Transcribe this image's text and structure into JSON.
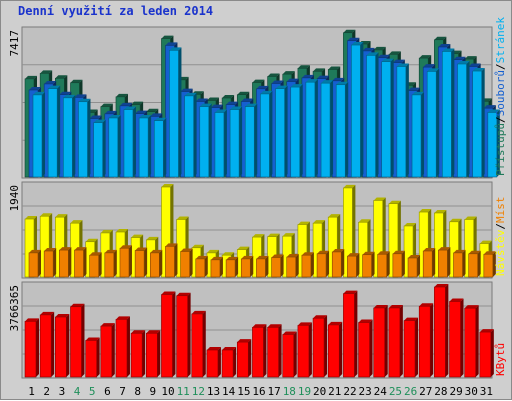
{
  "chart_data": {
    "type": "bar",
    "title": "Denní využití za leden 2014",
    "categories": [
      "1",
      "2",
      "3",
      "4",
      "5",
      "6",
      "7",
      "8",
      "9",
      "10",
      "11",
      "12",
      "13",
      "14",
      "15",
      "16",
      "17",
      "18",
      "19",
      "20",
      "21",
      "22",
      "23",
      "24",
      "25",
      "26",
      "27",
      "28",
      "29",
      "30",
      "31"
    ],
    "weekend_days": [
      "4",
      "5",
      "11",
      "12",
      "18",
      "19",
      "25",
      "26"
    ],
    "panels": [
      {
        "id": "top",
        "ymax_label": "7417",
        "ylim": [
          0,
          7417
        ],
        "series": [
          {
            "name": "Stránek",
            "color": "#1f7a5a",
            "values": [
              5020,
              5300,
              5050,
              4820,
              3300,
              3600,
              4100,
              3700,
              3340,
              7080,
              4970,
              4230,
              3910,
              4040,
              4210,
              4830,
              5140,
              5260,
              5560,
              5400,
              5500,
              7380,
              6800,
              6500,
              6270,
              4690,
              6080,
              7020,
              6310,
              6030,
              3870
            ]
          },
          {
            "name": "Souborů",
            "color": "#1560d0",
            "values": [
              4450,
              4760,
              4210,
              4070,
              2990,
              3230,
              3640,
              3240,
              3100,
              6730,
              4370,
              3860,
              3550,
              3700,
              3860,
              4510,
              4780,
              4880,
              5070,
              5030,
              4920,
              6970,
              6450,
              6100,
              5850,
              4420,
              5620,
              6650,
              6000,
              5650,
              3520
            ]
          },
          {
            "name": "Přístupů",
            "color": "#00b0f0",
            "values": [
              4200,
              4520,
              4050,
              3850,
              2780,
              3020,
              3450,
              3020,
              2880,
              6480,
              4150,
              3600,
              3300,
              3450,
              3600,
              4250,
              4520,
              4600,
              4850,
              4800,
              4720,
              6750,
              6220,
              5900,
              5650,
              4200,
              5400,
              6420,
              5780,
              5420,
              3300
            ]
          }
        ],
        "right_labels": [
          {
            "text": "Přístupů",
            "color": "#1f7a5a"
          },
          {
            "text": "/",
            "color": "#000000"
          },
          {
            "text": "Souborů",
            "color": "#1560d0"
          },
          {
            "text": "/",
            "color": "#000000"
          },
          {
            "text": "Stránek",
            "color": "#00b0f0"
          }
        ]
      },
      {
        "id": "middle",
        "ymax_label": "1940",
        "ylim": [
          0,
          1940
        ],
        "series": [
          {
            "name": "Návštěv",
            "color": "#ffff00",
            "values": [
              1250,
              1310,
              1290,
              1160,
              760,
              950,
              970,
              850,
              800,
              1940,
              1240,
              630,
              520,
              470,
              590,
              860,
              870,
              880,
              1130,
              1160,
              1290,
              1920,
              1180,
              1650,
              1580,
              1100,
              1400,
              1380,
              1190,
              1240,
              720
            ]
          },
          {
            "name": "Míst",
            "color": "#f08000",
            "values": [
              520,
              560,
              580,
              580,
              470,
              520,
              620,
              570,
              520,
              660,
              550,
              390,
              370,
              370,
              390,
              390,
              420,
              430,
              470,
              500,
              540,
              450,
              480,
              490,
              500,
              410,
              560,
              580,
              520,
              500,
              490
            ]
          }
        ],
        "right_labels": [
          {
            "text": "Návštěv",
            "color": "#ffff00"
          },
          {
            "text": "/",
            "color": "#000000"
          },
          {
            "text": "Míst",
            "color": "#f08000"
          }
        ]
      },
      {
        "id": "bottom",
        "ymax_label": "3766365",
        "ylim": [
          0,
          3766365
        ],
        "series": [
          {
            "name": "KBytů",
            "color": "#ff0000",
            "values": [
              2330000,
              2600000,
              2510000,
              2940000,
              1530000,
              2130000,
              2410000,
              1830000,
              1830000,
              3450000,
              3400000,
              2640000,
              1130000,
              1130000,
              1460000,
              2080000,
              2080000,
              1780000,
              2160000,
              2460000,
              2180000,
              3490000,
              2280000,
              2890000,
              2890000,
              2360000,
              2960000,
              3766365,
              3160000,
              2880000,
              1880000
            ]
          }
        ],
        "right_labels": [
          {
            "text": "KBytů",
            "color": "#ff0000"
          }
        ]
      }
    ],
    "grid": true,
    "legend": "right-vertical"
  }
}
